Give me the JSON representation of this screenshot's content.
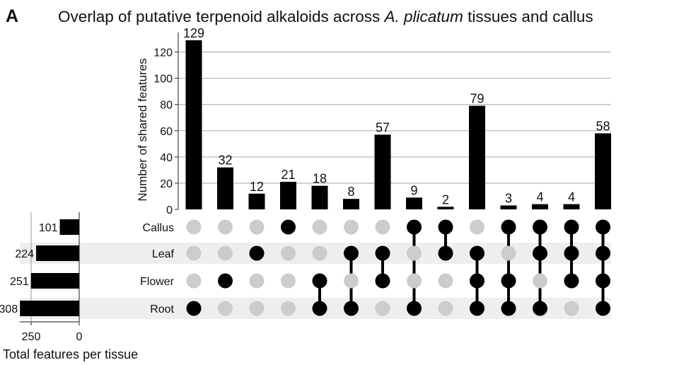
{
  "panel_letter": "A",
  "title_parts": [
    {
      "text": "Overlap of putative terpenoid alkaloids across ",
      "italic": false
    },
    {
      "text": "A. plicatum",
      "italic": true
    },
    {
      "text": " tissues and callus",
      "italic": false
    }
  ],
  "chart_data": {
    "type": "bar",
    "subtype": "upset",
    "ylabel": "Number of shared features",
    "ylim": [
      0,
      130
    ],
    "yticks": [
      0,
      20,
      40,
      60,
      80,
      100,
      120
    ],
    "grid": true,
    "sets": [
      "Callus",
      "Leaf",
      "Flower",
      "Root"
    ],
    "set_sizes": [
      101,
      224,
      251,
      308
    ],
    "set_size_label": "Total features per tissue",
    "set_size_ticks": [
      250,
      0
    ],
    "intersections": [
      {
        "value": 129,
        "members": [
          "Root"
        ]
      },
      {
        "value": 32,
        "members": [
          "Flower"
        ]
      },
      {
        "value": 12,
        "members": [
          "Leaf"
        ]
      },
      {
        "value": 21,
        "members": [
          "Callus"
        ]
      },
      {
        "value": 18,
        "members": [
          "Flower",
          "Root"
        ]
      },
      {
        "value": 8,
        "members": [
          "Leaf",
          "Root"
        ]
      },
      {
        "value": 57,
        "members": [
          "Leaf",
          "Flower"
        ]
      },
      {
        "value": 9,
        "members": [
          "Callus",
          "Root"
        ]
      },
      {
        "value": 2,
        "members": [
          "Callus",
          "Leaf"
        ]
      },
      {
        "value": 79,
        "members": [
          "Leaf",
          "Flower",
          "Root"
        ]
      },
      {
        "value": 3,
        "members": [
          "Callus",
          "Flower",
          "Root"
        ]
      },
      {
        "value": 4,
        "members": [
          "Callus",
          "Leaf",
          "Root"
        ]
      },
      {
        "value": 4,
        "members": [
          "Callus",
          "Leaf",
          "Flower"
        ]
      },
      {
        "value": 58,
        "members": [
          "Callus",
          "Leaf",
          "Flower",
          "Root"
        ]
      }
    ],
    "colors": {
      "bar": "#000000",
      "dot_active": "#000000",
      "dot_inactive": "#cccccc",
      "row_shade": "#eeeeee",
      "grid": "#bbbbbb"
    }
  }
}
